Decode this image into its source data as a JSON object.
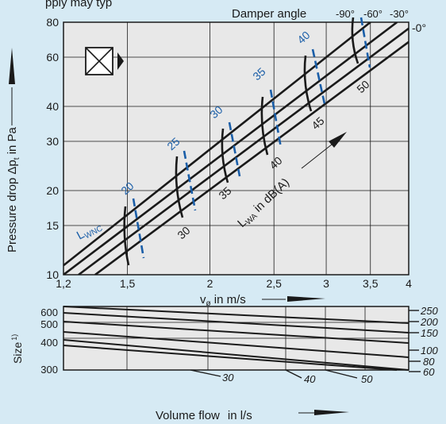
{
  "top_cut_text": "pply may typ",
  "damper": {
    "label": "Damper angle",
    "angles": [
      "-90°",
      "-60°",
      "-30°"
    ],
    "zero_label": "-0°"
  },
  "chart_data": [
    {
      "type": "line",
      "xlabel": "v",
      "xlabel_subscript": "ø",
      "xlabel_unit": " in m/s",
      "ylabel": "Pressure drop Δp",
      "ylabel_subscript": "t",
      "ylabel_unit": " in Pa",
      "xscale": "log",
      "yscale": "log",
      "xlim": [
        1.2,
        4
      ],
      "ylim": [
        10,
        80
      ],
      "x_ticks": [
        "1,2",
        "1,5",
        "2",
        "2,5",
        "3",
        "3,5",
        "4"
      ],
      "x_tick_values": [
        1.2,
        1.5,
        2,
        2.5,
        3,
        3.5,
        4
      ],
      "y_ticks": [
        "10",
        "15",
        "20",
        "30",
        "40",
        "60",
        "80"
      ],
      "y_tick_values": [
        10,
        15,
        20,
        30,
        40,
        60,
        80
      ],
      "series": [
        {
          "name": "-90°",
          "x": [
            1.2,
            3.5
          ],
          "y": [
            10.8,
            80
          ]
        },
        {
          "name": "-60°",
          "x": [
            1.2,
            3.84
          ],
          "y": [
            10.0,
            80
          ]
        },
        {
          "name": "-30°",
          "x": [
            1.265,
            4.0
          ],
          "y": [
            10.0,
            76
          ]
        },
        {
          "name": "-0°",
          "x": [
            1.34,
            4.0
          ],
          "y": [
            10.0,
            68
          ]
        }
      ],
      "lwa_label": "L",
      "lwa_sub": "WA",
      "lwa_unit": " in dB(A)",
      "lwa_values": [
        {
          "label": "30",
          "x": 1.72,
          "y": 12.6
        },
        {
          "label": "35",
          "x": 2.16,
          "y": 18.0
        },
        {
          "label": "40",
          "x": 2.52,
          "y": 26.0
        },
        {
          "label": "45",
          "x": 2.98,
          "y": 35.0
        },
        {
          "label": "50",
          "x": 3.48,
          "y": 49.0
        }
      ],
      "lwnc_label": "L",
      "lwnc_sub": "WNC",
      "lwnc_values": [
        {
          "label": "20",
          "x": 1.52,
          "y": 20.2
        },
        {
          "label": "25",
          "x": 1.8,
          "y": 27.0
        },
        {
          "label": "30",
          "x": 2.2,
          "y": 36.5
        },
        {
          "label": "35",
          "x": 2.58,
          "y": 51.5
        },
        {
          "label": "40",
          "x": 2.92,
          "y": 68.0
        }
      ]
    },
    {
      "type": "line",
      "ylabel": "Size",
      "ylabel_sup": "1)",
      "xlabel": "Volume flow",
      "xlabel_unit": "in l/s",
      "left_ticks": [
        "600",
        "500",
        "400",
        "300"
      ],
      "right_ticks": [
        "250",
        "200",
        "150",
        "100",
        "80",
        "60"
      ],
      "flow_ticks": [
        "30",
        "40",
        "50"
      ]
    }
  ]
}
